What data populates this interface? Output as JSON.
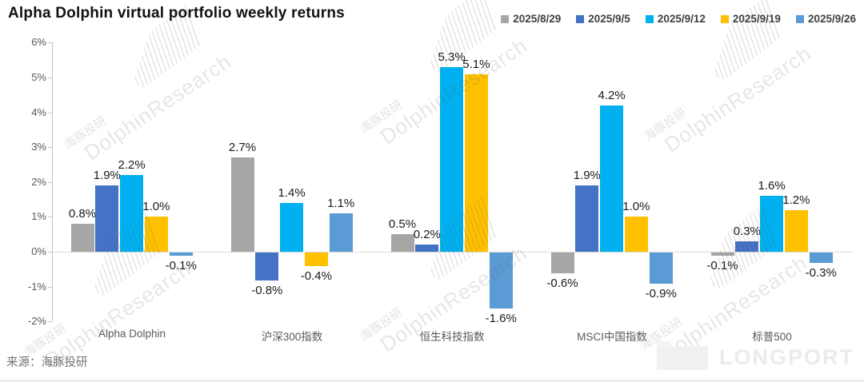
{
  "title": "Alpha Dolphin virtual portfolio weekly returns",
  "source_note": "来源：海豚投研",
  "watermark": {
    "cn": "海豚投研",
    "en": "DolphinResearch"
  },
  "footer_logo_text": "LONGPORT",
  "colors": {
    "series": [
      "#a6a6a6",
      "#4472c4",
      "#00b0f0",
      "#ffc000",
      "#5b9bd5"
    ],
    "axis_line": "#c3c3c3",
    "zero_gridline": "#d9d9d9",
    "tick_text": "#595959",
    "data_label_text": "#1a1a1a",
    "legend_text": "#404040"
  },
  "chart_data": {
    "type": "bar",
    "title": "Alpha Dolphin virtual portfolio weekly returns",
    "categories": [
      "Alpha Dolphin",
      "沪深300指数",
      "恒生科技指数",
      "MSCI中国指数",
      "标普500"
    ],
    "series": [
      {
        "name": "2025/8/29",
        "color": "#a6a6a6",
        "values": [
          0.8,
          2.7,
          0.5,
          -0.6,
          -0.1
        ]
      },
      {
        "name": "2025/9/5",
        "color": "#4472c4",
        "values": [
          1.9,
          -0.8,
          0.2,
          1.9,
          0.3
        ]
      },
      {
        "name": "2025/9/12",
        "color": "#00b0f0",
        "values": [
          2.2,
          1.4,
          5.3,
          4.2,
          1.6
        ]
      },
      {
        "name": "2025/9/19",
        "color": "#ffc000",
        "values": [
          1.0,
          -0.4,
          5.1,
          1.0,
          1.2
        ]
      },
      {
        "name": "2025/9/26",
        "color": "#5b9bd5",
        "values": [
          -0.1,
          1.1,
          -1.6,
          -0.9,
          -0.3
        ]
      }
    ],
    "xlabel": "",
    "ylabel": "",
    "yticks": [
      "6%",
      "5%",
      "4%",
      "3%",
      "2%",
      "1%",
      "0%",
      "-1%",
      "-2%"
    ],
    "ylim": [
      -2,
      6
    ],
    "grid": "zero-line-only",
    "legend_position": "top-right",
    "data_label_format": "one-decimal-percent"
  }
}
